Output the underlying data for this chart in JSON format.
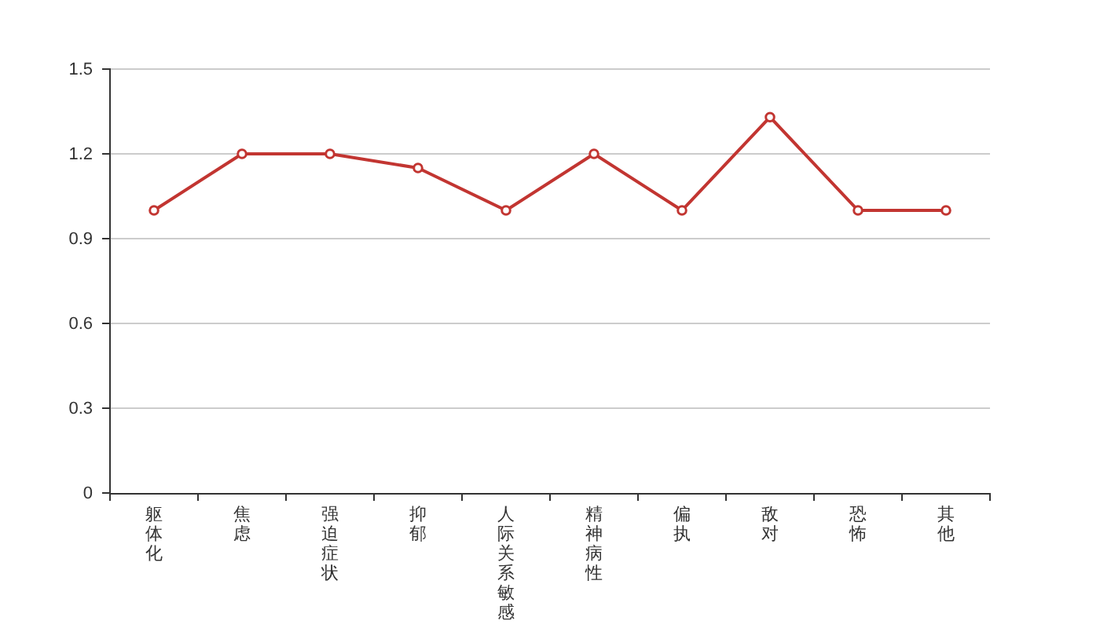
{
  "chart_data": {
    "type": "line",
    "categories": [
      "躯体化",
      "焦虑",
      "强迫症状",
      "抑郁",
      "人际关系敏感",
      "精神病性",
      "偏执",
      "敌对",
      "恐怖",
      "其他"
    ],
    "values": [
      1.0,
      1.2,
      1.2,
      1.15,
      1.0,
      1.2,
      1.0,
      1.33,
      1.0,
      1.0
    ],
    "color": "#c23531",
    "ylim": [
      0,
      1.5
    ],
    "yticks": [
      0,
      0.3,
      0.6,
      0.9,
      1.2,
      1.5
    ],
    "grid": "y",
    "marker": "circle",
    "line_style": "solid"
  }
}
